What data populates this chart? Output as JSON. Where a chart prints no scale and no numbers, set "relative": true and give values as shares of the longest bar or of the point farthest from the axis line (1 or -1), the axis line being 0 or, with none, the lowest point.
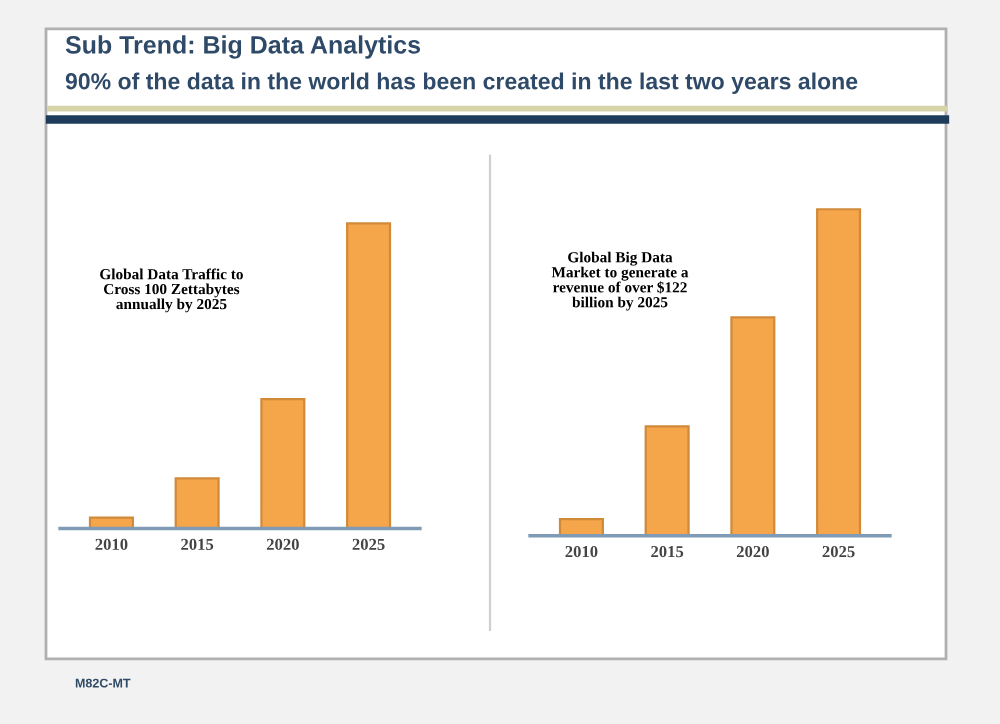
{
  "chart_data": [
    {
      "type": "bar",
      "title": "Sub Trend: Big Data Analytics",
      "subtitle": "90% of the data in the world has been created in the last two years alone",
      "categories": [
        "2010",
        "2015",
        "2020",
        "2025"
      ],
      "values": [
        0.036,
        0.164,
        0.424,
        1
      ],
      "color": "#f5a54a",
      "relative": true,
      "annotations": [
        "Global Data Traffic to\nCross 100 Zettabytes\nannually by 2025",
        "M82C-MT"
      ]
    },
    {
      "type": "bar",
      "categories": [
        "2010",
        "2015",
        "2020",
        "2025"
      ],
      "values": [
        0.051,
        0.335,
        0.669,
        1
      ],
      "color": "#f5a54a",
      "relative": true,
      "annotations": [
        "Global Big Data\nMarket to generate a\nrevenue of over $122\nbillion by 2025"
      ]
    }
  ]
}
